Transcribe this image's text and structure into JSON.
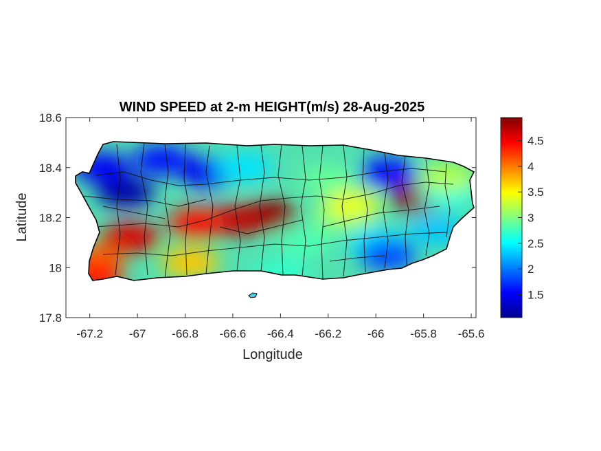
{
  "title": "WIND SPEED at 2-m HEIGHT(m/s) 28-Aug-2025",
  "axes": {
    "xlabel": "Longitude",
    "ylabel": "Latitude",
    "xlim": [
      -67.3,
      -65.58
    ],
    "ylim": [
      17.8,
      18.6
    ],
    "xticks": [
      "-67.2",
      "-67",
      "-66.8",
      "-66.6",
      "-66.4",
      "-66.2",
      "-66",
      "-65.8",
      "-65.6"
    ],
    "yticks": [
      "17.8",
      "18",
      "18.2",
      "18.4",
      "18.6"
    ]
  },
  "colorbar": {
    "colormap": "jet",
    "range": [
      1.05,
      4.95
    ],
    "ticks": [
      "1.5",
      "2",
      "2.5",
      "3",
      "3.5",
      "4",
      "4.5"
    ]
  },
  "chart_data": {
    "type": "heatmap",
    "title": "WIND SPEED at 2-m HEIGHT(m/s) 28-Aug-2025",
    "xlabel": "Longitude",
    "ylabel": "Latitude",
    "xlim": [
      -67.3,
      -65.58
    ],
    "ylim": [
      17.8,
      18.6
    ],
    "colorbar_range": [
      1.05,
      4.95
    ],
    "colorbar_ticks": [
      1.5,
      2,
      2.5,
      3,
      3.5,
      4,
      4.5
    ],
    "colormap": "jet",
    "grid": false,
    "features": [
      {
        "lon": -67.05,
        "lat": 18.3,
        "value": 1.2
      },
      {
        "lon": -66.7,
        "lat": 18.38,
        "value": 1.5
      },
      {
        "lon": -66.9,
        "lat": 18.43,
        "value": 1.6
      },
      {
        "lon": -65.95,
        "lat": 18.38,
        "value": 1.6
      },
      {
        "lon": -67.15,
        "lat": 18.4,
        "value": 1.5
      },
      {
        "lon": -66.45,
        "lat": 18.21,
        "value": 4.9
      },
      {
        "lon": -66.58,
        "lat": 18.19,
        "value": 4.7
      },
      {
        "lon": -65.82,
        "lat": 18.28,
        "value": 4.9
      },
      {
        "lon": -66.75,
        "lat": 18.18,
        "value": 4.4
      },
      {
        "lon": -67.03,
        "lat": 18.12,
        "value": 4.6
      },
      {
        "lon": -67.18,
        "lat": 18.03,
        "value": 4.1
      },
      {
        "lon": -67.18,
        "lat": 17.96,
        "value": 4.4
      },
      {
        "lon": -66.3,
        "lat": 18.1,
        "value": 2.8
      },
      {
        "lon": -66.2,
        "lat": 18.35,
        "value": 2.9
      },
      {
        "lon": -66.4,
        "lat": 17.97,
        "value": 2.7
      },
      {
        "lon": -66.0,
        "lat": 18.1,
        "value": 2.4
      },
      {
        "lon": -65.95,
        "lat": 18.05,
        "value": 1.8
      },
      {
        "lon": -66.55,
        "lat": 18.4,
        "value": 2.4
      },
      {
        "lon": -66.15,
        "lat": 18.2,
        "value": 3.0
      },
      {
        "lon": -66.78,
        "lat": 18.02,
        "value": 3.7
      },
      {
        "lon": -66.1,
        "lat": 18.25,
        "value": 3.4
      },
      {
        "lon": -65.7,
        "lat": 18.3,
        "value": 2.6
      },
      {
        "lon": -65.75,
        "lat": 18.15,
        "value": 2.3
      },
      {
        "lon": -65.7,
        "lat": 18.36,
        "value": 3.2
      }
    ]
  }
}
